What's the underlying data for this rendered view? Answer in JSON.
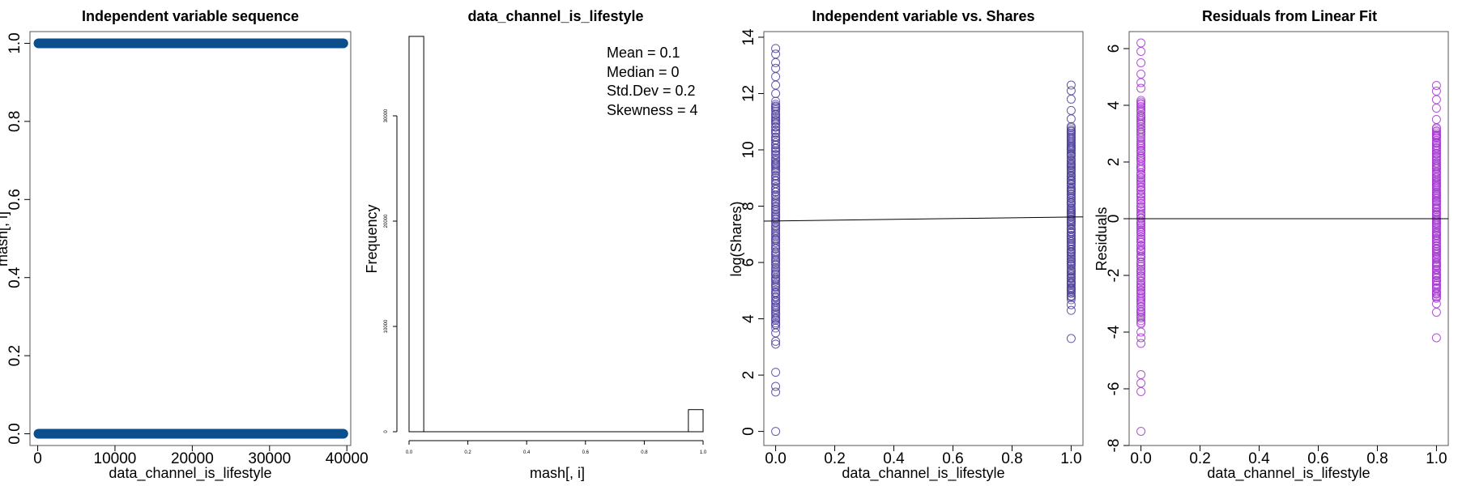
{
  "chart_data": [
    {
      "type": "scatter",
      "title": "Independent variable sequence",
      "xlabel": "data_channel_is_lifestyle",
      "ylabel": "mash[, i]",
      "xlim": [
        -1000,
        40500
      ],
      "ylim": [
        -0.03,
        1.03
      ],
      "xticks": [
        "0",
        "10000",
        "20000",
        "30000",
        "40000"
      ],
      "yticks": [
        "0.0",
        "0.2",
        "0.4",
        "0.6",
        "0.8",
        "1.0"
      ],
      "series": [
        {
          "x_range": [
            0,
            39644
          ],
          "y": 1
        },
        {
          "x_range": [
            0,
            39644
          ],
          "y": 0
        }
      ],
      "point_color": "#0b4f8c",
      "grid": false
    },
    {
      "type": "bar",
      "title": "data_channel_is_lifestyle",
      "xlabel": "mash[, i]",
      "ylabel": "Frequency",
      "xlim": [
        0,
        1
      ],
      "ylim": [
        0,
        38000
      ],
      "xticks": [
        "0.0",
        "0.2",
        "0.4",
        "0.6",
        "0.8",
        "1.0"
      ],
      "yticks": [
        "0",
        "10000",
        "20000",
        "30000"
      ],
      "bins": [
        {
          "x0": 0.0,
          "x1": 0.05,
          "value": 37545
        },
        {
          "x0": 0.95,
          "x1": 1.0,
          "value": 2099
        }
      ],
      "stats": [
        "Mean = 0.1",
        "Median = 0",
        "Std.Dev = 0.2",
        "Skewness = 4"
      ]
    },
    {
      "type": "scatter",
      "title": "Independent variable vs. Shares",
      "xlabel": "data_channel_is_lifestyle",
      "ylabel": "log(Shares)",
      "xlim": [
        -0.04,
        1.04
      ],
      "ylim": [
        -0.5,
        14.2
      ],
      "xticks": [
        "0.0",
        "0.2",
        "0.4",
        "0.6",
        "0.8",
        "1.0"
      ],
      "yticks": [
        "0",
        "2",
        "4",
        "6",
        "8",
        "10",
        "12",
        "14"
      ],
      "columns": [
        {
          "x": 0,
          "dense": [
            3.7,
            11.7
          ],
          "outliers": [
            0,
            1.4,
            1.6,
            2.1,
            3.1,
            3.2,
            3.5,
            12.0,
            12.3,
            12.6,
            12.9,
            13.1,
            13.4,
            13.6
          ]
        },
        {
          "x": 1,
          "dense": [
            4.7,
            10.8
          ],
          "outliers": [
            3.3,
            4.3,
            4.5,
            11.1,
            11.4,
            11.8,
            12.1,
            12.3
          ]
        }
      ],
      "fit_line": {
        "x": [
          -0.04,
          1.04
        ],
        "y": [
          7.47,
          7.62
        ]
      },
      "point_color": "#4b3d99"
    },
    {
      "type": "scatter",
      "title": "Residuals from Linear Fit",
      "xlabel": "data_channel_is_lifestyle",
      "ylabel": "Residuals",
      "xlim": [
        -0.04,
        1.04
      ],
      "ylim": [
        -8.0,
        6.6
      ],
      "xticks": [
        "0.0",
        "0.2",
        "0.4",
        "0.6",
        "0.8",
        "1.0"
      ],
      "yticks": [
        "-8",
        "-6",
        "-4",
        "-2",
        "0",
        "2",
        "4",
        "6"
      ],
      "columns": [
        {
          "x": 0,
          "dense": [
            -3.7,
            4.2
          ],
          "outliers": [
            -7.5,
            -6.1,
            -5.8,
            -5.5,
            -4.4,
            -4.2,
            -4.0,
            4.6,
            4.8,
            5.1,
            5.5,
            5.9,
            6.2
          ]
        },
        {
          "x": 1,
          "dense": [
            -2.8,
            3.2
          ],
          "outliers": [
            -4.2,
            -3.3,
            -3.0,
            3.5,
            3.9,
            4.2,
            4.5,
            4.7
          ]
        }
      ],
      "fit_line": {
        "x": [
          -0.04,
          1.04
        ],
        "y": [
          0,
          0
        ]
      },
      "point_color": "#a335cf"
    }
  ]
}
